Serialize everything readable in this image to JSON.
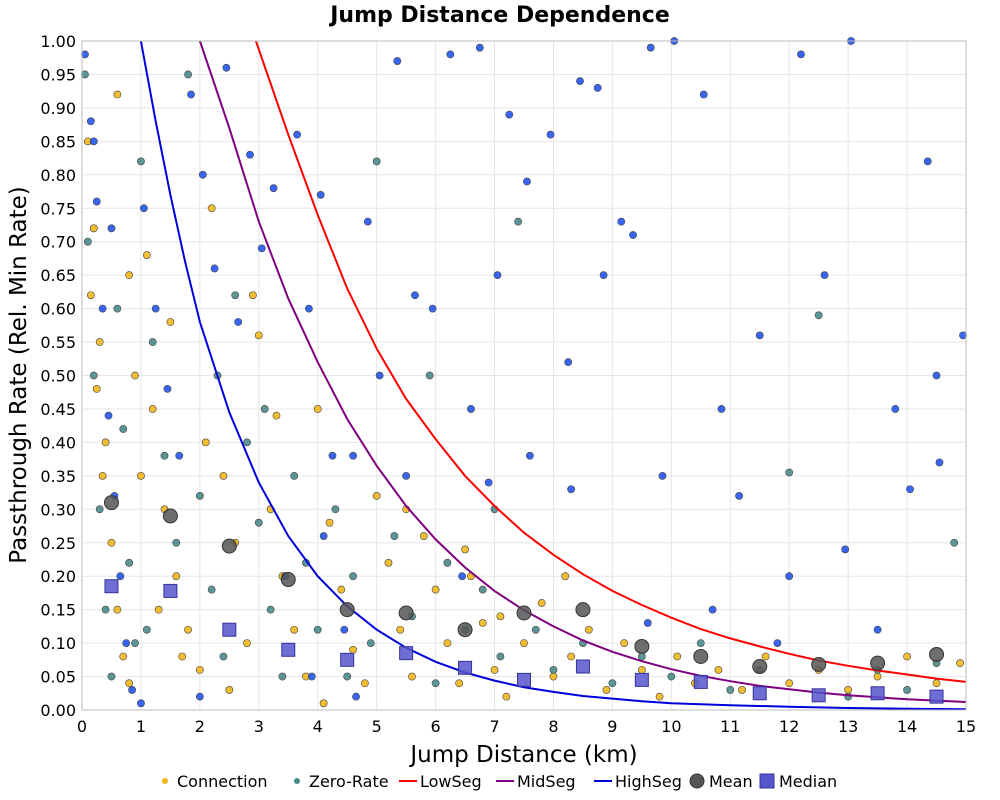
{
  "chart_data": {
    "type": "scatter",
    "title": "Jump Distance Dependence",
    "xlabel": "Jump Distance (km)",
    "ylabel": "Passthrough Rate (Rel. Min Rate)",
    "xlim": [
      0,
      15
    ],
    "ylim": [
      0,
      1
    ],
    "x_ticks": [
      "0",
      "1",
      "2",
      "3",
      "4",
      "5",
      "6",
      "7",
      "8",
      "9",
      "10",
      "11",
      "12",
      "13",
      "14",
      "15"
    ],
    "y_ticks": [
      "0.00",
      "0.05",
      "0.10",
      "0.15",
      "0.20",
      "0.25",
      "0.30",
      "0.35",
      "0.40",
      "0.45",
      "0.50",
      "0.55",
      "0.60",
      "0.65",
      "0.70",
      "0.75",
      "0.80",
      "0.85",
      "0.90",
      "0.95",
      "1.00"
    ],
    "grid": true,
    "legend_position": "bottom",
    "colors": {
      "connection": "#f2b61c",
      "zero_rate": "#4a8a8a",
      "lowseg": "#ff0000",
      "midseg": "#800080",
      "highseg": "#0000dd",
      "mean": "#555555",
      "median": "#5555cc"
    },
    "legend": [
      {
        "key": "connection",
        "label": "Connection"
      },
      {
        "key": "zero_rate",
        "label": "Zero-Rate"
      },
      {
        "key": "lowseg",
        "label": "LowSeg"
      },
      {
        "key": "midseg",
        "label": "MidSeg"
      },
      {
        "key": "highseg",
        "label": "HighSeg"
      },
      {
        "key": "mean",
        "label": "Mean"
      },
      {
        "key": "median",
        "label": "Median"
      }
    ],
    "curves": [
      {
        "name": "LowSeg",
        "color": "#ff0000",
        "points": [
          [
            2.95,
            1.0
          ],
          [
            3.5,
            0.86
          ],
          [
            4,
            0.74
          ],
          [
            4.5,
            0.63
          ],
          [
            5,
            0.54
          ],
          [
            5.5,
            0.465
          ],
          [
            6,
            0.405
          ],
          [
            6.5,
            0.35
          ],
          [
            7,
            0.305
          ],
          [
            7.5,
            0.265
          ],
          [
            8,
            0.232
          ],
          [
            8.5,
            0.203
          ],
          [
            9,
            0.178
          ],
          [
            9.5,
            0.157
          ],
          [
            10,
            0.138
          ],
          [
            10.5,
            0.121
          ],
          [
            11,
            0.107
          ],
          [
            11.5,
            0.095
          ],
          [
            12,
            0.084
          ],
          [
            12.5,
            0.074
          ],
          [
            13,
            0.066
          ],
          [
            13.5,
            0.059
          ],
          [
            14,
            0.053
          ],
          [
            14.5,
            0.047
          ],
          [
            15,
            0.042
          ]
        ]
      },
      {
        "name": "MidSeg",
        "color": "#800080",
        "points": [
          [
            2.0,
            1.0
          ],
          [
            2.5,
            0.87
          ],
          [
            3,
            0.73
          ],
          [
            3.5,
            0.615
          ],
          [
            4,
            0.52
          ],
          [
            4.5,
            0.435
          ],
          [
            5,
            0.365
          ],
          [
            5.5,
            0.305
          ],
          [
            6,
            0.255
          ],
          [
            6.5,
            0.213
          ],
          [
            7,
            0.178
          ],
          [
            7.5,
            0.149
          ],
          [
            8,
            0.125
          ],
          [
            8.5,
            0.104
          ],
          [
            9,
            0.087
          ],
          [
            9.5,
            0.073
          ],
          [
            10,
            0.061
          ],
          [
            10.5,
            0.051
          ],
          [
            11,
            0.043
          ],
          [
            11.5,
            0.036
          ],
          [
            12,
            0.031
          ],
          [
            12.5,
            0.026
          ],
          [
            13,
            0.022
          ],
          [
            13.5,
            0.019
          ],
          [
            14,
            0.016
          ],
          [
            14.5,
            0.014
          ],
          [
            15,
            0.012
          ]
        ]
      },
      {
        "name": "HighSeg",
        "color": "#0000dd",
        "points": [
          [
            1.0,
            1.0
          ],
          [
            1.25,
            0.88
          ],
          [
            1.5,
            0.77
          ],
          [
            1.75,
            0.67
          ],
          [
            2,
            0.58
          ],
          [
            2.5,
            0.445
          ],
          [
            3,
            0.34
          ],
          [
            3.5,
            0.26
          ],
          [
            4,
            0.2
          ],
          [
            4.5,
            0.155
          ],
          [
            5,
            0.12
          ],
          [
            5.5,
            0.093
          ],
          [
            6,
            0.072
          ],
          [
            6.5,
            0.056
          ],
          [
            7,
            0.044
          ],
          [
            7.5,
            0.034
          ],
          [
            8,
            0.027
          ],
          [
            8.5,
            0.021
          ],
          [
            9,
            0.017
          ],
          [
            9.5,
            0.013
          ],
          [
            10,
            0.01
          ],
          [
            11,
            0.007
          ],
          [
            12,
            0.005
          ],
          [
            13,
            0.003
          ],
          [
            14,
            0.002
          ],
          [
            15,
            0.001
          ]
        ]
      }
    ],
    "mean": {
      "x": [
        0.5,
        1.5,
        2.5,
        3.5,
        4.5,
        5.5,
        6.5,
        7.5,
        8.5,
        9.5,
        10.5,
        11.5,
        12.5,
        13.5,
        14.5
      ],
      "y": [
        0.31,
        0.29,
        0.245,
        0.195,
        0.15,
        0.145,
        0.12,
        0.145,
        0.15,
        0.095,
        0.08,
        0.065,
        0.068,
        0.07,
        0.083
      ]
    },
    "median": {
      "x": [
        0.5,
        1.5,
        2.5,
        3.5,
        4.5,
        5.5,
        6.5,
        7.5,
        8.5,
        9.5,
        10.5,
        11.5,
        12.5,
        13.5,
        14.5
      ],
      "y": [
        0.185,
        0.178,
        0.12,
        0.09,
        0.075,
        0.085,
        0.063,
        0.045,
        0.065,
        0.045,
        0.042,
        0.025,
        0.022,
        0.025,
        0.02
      ]
    },
    "connection_points": [
      [
        0.1,
        0.85
      ],
      [
        0.2,
        0.72
      ],
      [
        0.3,
        0.55
      ],
      [
        0.4,
        0.4
      ],
      [
        0.5,
        0.25
      ],
      [
        0.6,
        0.15
      ],
      [
        0.7,
        0.08
      ],
      [
        0.8,
        0.04
      ],
      [
        0.15,
        0.62
      ],
      [
        0.25,
        0.48
      ],
      [
        0.35,
        0.35
      ],
      [
        0.9,
        0.5
      ],
      [
        1.1,
        0.68
      ],
      [
        1.2,
        0.45
      ],
      [
        1.4,
        0.3
      ],
      [
        1.6,
        0.2
      ],
      [
        1.8,
        0.12
      ],
      [
        2.0,
        0.06
      ],
      [
        2.2,
        0.75
      ],
      [
        2.4,
        0.35
      ],
      [
        2.6,
        0.25
      ],
      [
        2.8,
        0.1
      ],
      [
        3.0,
        0.56
      ],
      [
        3.2,
        0.3
      ],
      [
        3.4,
        0.2
      ],
      [
        3.6,
        0.12
      ],
      [
        3.8,
        0.05
      ],
      [
        4.0,
        0.45
      ],
      [
        4.2,
        0.28
      ],
      [
        4.4,
        0.18
      ],
      [
        4.6,
        0.09
      ],
      [
        4.8,
        0.04
      ],
      [
        5.0,
        0.32
      ],
      [
        5.2,
        0.22
      ],
      [
        5.4,
        0.12
      ],
      [
        5.6,
        0.05
      ],
      [
        5.8,
        0.26
      ],
      [
        6.0,
        0.18
      ],
      [
        6.2,
        0.1
      ],
      [
        6.4,
        0.04
      ],
      [
        6.6,
        0.2
      ],
      [
        6.8,
        0.13
      ],
      [
        7.0,
        0.06
      ],
      [
        7.2,
        0.02
      ],
      [
        7.5,
        0.1
      ],
      [
        7.8,
        0.16
      ],
      [
        8.0,
        0.05
      ],
      [
        8.3,
        0.08
      ],
      [
        8.6,
        0.12
      ],
      [
        8.9,
        0.03
      ],
      [
        9.2,
        0.1
      ],
      [
        9.5,
        0.06
      ],
      [
        9.8,
        0.02
      ],
      [
        10.1,
        0.08
      ],
      [
        10.4,
        0.04
      ],
      [
        10.8,
        0.06
      ],
      [
        11.2,
        0.03
      ],
      [
        11.6,
        0.08
      ],
      [
        12.0,
        0.04
      ],
      [
        12.5,
        0.06
      ],
      [
        13.0,
        0.03
      ],
      [
        13.5,
        0.05
      ],
      [
        14.0,
        0.08
      ],
      [
        14.5,
        0.04
      ],
      [
        14.9,
        0.07
      ],
      [
        1.5,
        0.58
      ],
      [
        2.1,
        0.4
      ],
      [
        2.9,
        0.62
      ],
      [
        3.3,
        0.44
      ],
      [
        0.6,
        0.92
      ],
      [
        0.8,
        0.65
      ],
      [
        1.0,
        0.35
      ],
      [
        1.3,
        0.15
      ],
      [
        1.7,
        0.08
      ],
      [
        2.5,
        0.03
      ],
      [
        4.1,
        0.01
      ],
      [
        5.5,
        0.3
      ],
      [
        6.5,
        0.24
      ],
      [
        7.1,
        0.14
      ],
      [
        8.2,
        0.2
      ]
    ],
    "zero_rate_points": [
      [
        0.05,
        0.95
      ],
      [
        0.1,
        0.7
      ],
      [
        0.2,
        0.5
      ],
      [
        0.3,
        0.3
      ],
      [
        0.4,
        0.15
      ],
      [
        0.5,
        0.05
      ],
      [
        0.6,
        0.6
      ],
      [
        0.7,
        0.42
      ],
      [
        0.8,
        0.22
      ],
      [
        0.9,
        0.1
      ],
      [
        1.0,
        0.82
      ],
      [
        1.2,
        0.55
      ],
      [
        1.4,
        0.38
      ],
      [
        1.6,
        0.25
      ],
      [
        1.8,
        0.95
      ],
      [
        2.0,
        0.32
      ],
      [
        2.2,
        0.18
      ],
      [
        2.4,
        0.08
      ],
      [
        2.6,
        0.62
      ],
      [
        2.8,
        0.4
      ],
      [
        3.0,
        0.28
      ],
      [
        3.2,
        0.15
      ],
      [
        3.4,
        0.05
      ],
      [
        3.6,
        0.35
      ],
      [
        3.8,
        0.22
      ],
      [
        4.0,
        0.12
      ],
      [
        4.3,
        0.3
      ],
      [
        4.6,
        0.2
      ],
      [
        4.9,
        0.1
      ],
      [
        5.0,
        0.82
      ],
      [
        5.3,
        0.26
      ],
      [
        5.6,
        0.14
      ],
      [
        5.9,
        0.5
      ],
      [
        6.2,
        0.22
      ],
      [
        6.5,
        0.12
      ],
      [
        6.8,
        0.18
      ],
      [
        7.1,
        0.08
      ],
      [
        7.4,
        0.73
      ],
      [
        7.7,
        0.12
      ],
      [
        8.0,
        0.06
      ],
      [
        8.5,
        0.1
      ],
      [
        9.0,
        0.04
      ],
      [
        9.5,
        0.08
      ],
      [
        10.0,
        0.05
      ],
      [
        10.5,
        0.1
      ],
      [
        11.0,
        0.03
      ],
      [
        11.5,
        0.06
      ],
      [
        12.0,
        0.355
      ],
      [
        12.5,
        0.59
      ],
      [
        13.0,
        0.02
      ],
      [
        13.5,
        0.06
      ],
      [
        14.0,
        0.03
      ],
      [
        14.5,
        0.07
      ],
      [
        14.8,
        0.25
      ],
      [
        1.1,
        0.12
      ],
      [
        2.3,
        0.5
      ],
      [
        3.1,
        0.45
      ],
      [
        4.5,
        0.05
      ],
      [
        6.0,
        0.04
      ],
      [
        7.0,
        0.3
      ]
    ],
    "highseg_points": [
      [
        0.05,
        0.98
      ],
      [
        0.15,
        0.88
      ],
      [
        0.25,
        0.76
      ],
      [
        0.35,
        0.6
      ],
      [
        0.45,
        0.44
      ],
      [
        0.55,
        0.32
      ],
      [
        0.65,
        0.2
      ],
      [
        0.75,
        0.1
      ],
      [
        0.85,
        0.03
      ],
      [
        1.05,
        0.75
      ],
      [
        1.25,
        0.6
      ],
      [
        1.45,
        0.48
      ],
      [
        1.65,
        0.38
      ],
      [
        1.85,
        0.92
      ],
      [
        2.05,
        0.8
      ],
      [
        2.25,
        0.66
      ],
      [
        2.45,
        0.96
      ],
      [
        2.65,
        0.58
      ],
      [
        2.85,
        0.83
      ],
      [
        3.05,
        0.69
      ],
      [
        3.25,
        0.78
      ],
      [
        3.45,
        0.2
      ],
      [
        3.65,
        0.86
      ],
      [
        3.85,
        0.6
      ],
      [
        4.05,
        0.77
      ],
      [
        4.25,
        0.38
      ],
      [
        4.45,
        0.12
      ],
      [
        4.65,
        0.02
      ],
      [
        4.85,
        0.73
      ],
      [
        5.05,
        0.5
      ],
      [
        5.35,
        0.97
      ],
      [
        5.65,
        0.62
      ],
      [
        5.95,
        0.6
      ],
      [
        6.25,
        0.98
      ],
      [
        6.45,
        0.2
      ],
      [
        6.75,
        0.99
      ],
      [
        7.05,
        0.65
      ],
      [
        7.25,
        0.89
      ],
      [
        7.55,
        0.79
      ],
      [
        7.95,
        0.86
      ],
      [
        8.25,
        0.52
      ],
      [
        8.45,
        0.94
      ],
      [
        8.75,
        0.93
      ],
      [
        8.85,
        0.65
      ],
      [
        9.15,
        0.73
      ],
      [
        9.35,
        0.71
      ],
      [
        9.65,
        0.99
      ],
      [
        9.85,
        0.35
      ],
      [
        10.05,
        1.0
      ],
      [
        10.55,
        0.92
      ],
      [
        10.85,
        0.45
      ],
      [
        11.15,
        0.32
      ],
      [
        11.5,
        0.56
      ],
      [
        12.2,
        0.98
      ],
      [
        12.6,
        0.65
      ],
      [
        12.95,
        0.24
      ],
      [
        13.05,
        1.0
      ],
      [
        13.5,
        0.12
      ],
      [
        13.8,
        0.45
      ],
      [
        14.05,
        0.33
      ],
      [
        14.35,
        0.82
      ],
      [
        14.5,
        0.5
      ],
      [
        14.55,
        0.37
      ],
      [
        14.95,
        0.56
      ],
      [
        12.0,
        0.2
      ],
      [
        11.8,
        0.1
      ],
      [
        10.7,
        0.15
      ],
      [
        9.6,
        0.13
      ],
      [
        8.3,
        0.33
      ],
      [
        7.6,
        0.38
      ],
      [
        6.9,
        0.34
      ],
      [
        5.5,
        0.35
      ],
      [
        4.1,
        0.26
      ],
      [
        3.9,
        0.05
      ],
      [
        2.0,
        0.02
      ],
      [
        1.0,
        0.01
      ],
      [
        0.5,
        0.72
      ],
      [
        0.2,
        0.85
      ],
      [
        6.6,
        0.45
      ],
      [
        4.6,
        0.38
      ]
    ]
  }
}
